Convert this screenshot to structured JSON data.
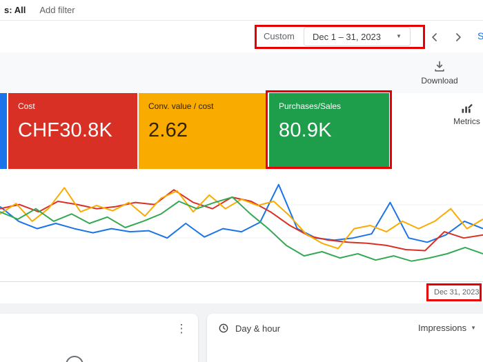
{
  "header": {
    "status_filter": "s: All",
    "add_filter": "Add filter"
  },
  "date_bar": {
    "custom_label": "Custom",
    "range": "Dec 1 – 31, 2023",
    "show_link": "S"
  },
  "toolbar": {
    "download_label": "Download"
  },
  "scorecards": {
    "accent_bar_color": "#1a73e8",
    "cards": [
      {
        "label": "Cost",
        "value": "CHF30.8K",
        "bg": "#d93025",
        "fg": "#ffffff"
      },
      {
        "label": "Conv. value / cost",
        "value": "2.62",
        "bg": "#f9ab00",
        "fg": "#332200"
      },
      {
        "label": "Purchases/Sales",
        "value": "80.9K",
        "bg": "#1e9e4a",
        "fg": "#ffffff"
      }
    ],
    "metrics_label": "Metrics"
  },
  "chart_data": {
    "type": "line",
    "x_axis_label": "Dec 31, 2023",
    "x_range": "Dec 1 – 31, 2023",
    "grid": true,
    "series": [
      {
        "name": "blue",
        "color": "#1a73e8",
        "values": [
          68,
          54,
          47,
          52,
          47,
          43,
          47,
          44,
          45,
          38,
          52,
          39,
          47,
          44,
          53,
          89,
          47,
          38,
          36,
          38,
          42,
          72,
          38,
          34,
          41,
          54,
          47
        ]
      },
      {
        "name": "red",
        "color": "#d93025",
        "values": [
          66,
          70,
          63,
          73,
          70,
          66,
          68,
          72,
          70,
          84,
          72,
          66,
          77,
          73,
          63,
          50,
          40,
          36,
          34,
          33,
          31,
          27,
          26,
          44,
          38,
          41
        ]
      },
      {
        "name": "orange",
        "color": "#f9ab00",
        "values": [
          61,
          71,
          54,
          66,
          86,
          63,
          69,
          64,
          72,
          59,
          76,
          83,
          63,
          79,
          66,
          75,
          69,
          73,
          59,
          42,
          33,
          28,
          47,
          50,
          44,
          54,
          47,
          54,
          66,
          47,
          56
        ]
      },
      {
        "name": "green",
        "color": "#34a853",
        "values": [
          63,
          56,
          66,
          54,
          61,
          52,
          58,
          48,
          54,
          61,
          73,
          66,
          72,
          77,
          61,
          47,
          31,
          21,
          25,
          19,
          23,
          17,
          21,
          16,
          19,
          23,
          29,
          23
        ]
      }
    ]
  },
  "panels": {
    "day_hour": {
      "title": "Day & hour",
      "metric": "Impressions"
    }
  },
  "icons": {
    "kebab": "⋮",
    "dropdown": "▼"
  },
  "annotations": {
    "highlight_color": "#e60000"
  }
}
